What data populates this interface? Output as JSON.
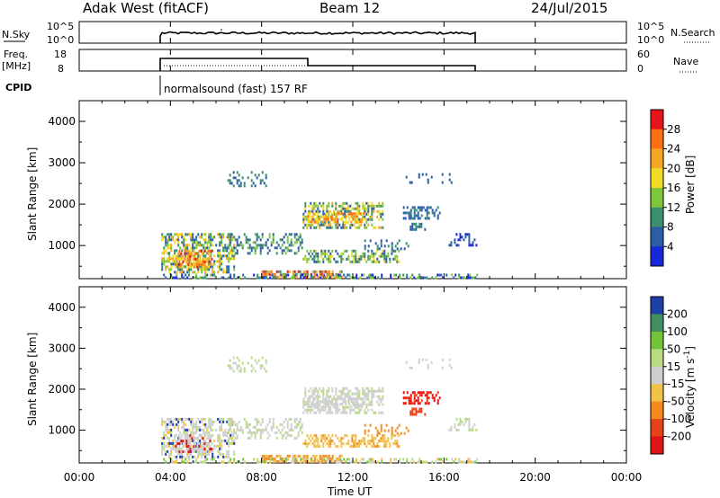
{
  "header": {
    "station": "Adak West (fitACF)",
    "beam": "Beam 12",
    "date": "24/Jul/2015"
  },
  "panels": {
    "nsky": {
      "label": "N.Sky",
      "left_ticks": [
        "10^5",
        "10^0"
      ],
      "right_ticks": [
        "10^5",
        "10^0"
      ],
      "right_label": "N.Search"
    },
    "freq": {
      "label_top": "Freq.",
      "label_bottom": "[MHz]",
      "left_ticks": [
        "18",
        "8"
      ],
      "right_ticks": [
        "60",
        "0"
      ],
      "right_label": "Nave"
    },
    "cpid": {
      "label": "CPID",
      "mode": "normalsound (fast) 157 RF"
    }
  },
  "time_axis": {
    "label": "Time UT",
    "ticks": [
      "00:00",
      "04:00",
      "08:00",
      "12:00",
      "16:00",
      "20:00",
      "00:00"
    ],
    "hours": [
      0,
      4,
      8,
      12,
      16,
      20,
      24
    ]
  },
  "chart_data": [
    {
      "type": "heatmap",
      "name": "power",
      "ylabel": "Slant Range [km]",
      "xlabel": "",
      "xlim_hours": [
        0,
        24
      ],
      "ylim": [
        200,
        4500
      ],
      "yticks": [
        1000,
        2000,
        3000,
        4000
      ],
      "data_span_hours": [
        3.6,
        17.5
      ],
      "colorbar": {
        "label": "Power [dB]",
        "ticks": [
          "28",
          "24",
          "20",
          "16",
          "12",
          "8",
          "4"
        ],
        "colors": [
          "#e8141c",
          "#ff6e10",
          "#f5a623",
          "#f2dc23",
          "#7fc63b",
          "#3a8f6e",
          "#2c5ea8",
          "#1826dc"
        ]
      }
    },
    {
      "type": "heatmap",
      "name": "velocity",
      "ylabel": "Slant Range [km]",
      "xlabel": "Time UT",
      "xlim_hours": [
        0,
        24
      ],
      "ylim": [
        200,
        4500
      ],
      "yticks": [
        1000,
        2000,
        3000,
        4000
      ],
      "data_span_hours": [
        3.6,
        17.5
      ],
      "colorbar": {
        "label": "Velocity [m s^-1]",
        "ticks": [
          "200",
          "100",
          "50",
          "15",
          "-15",
          "-50",
          "-100",
          "-200"
        ],
        "colors": [
          "#1f3ea8",
          "#3f8f60",
          "#74c43a",
          "#b8dc80",
          "#cfcfcf",
          "#f2c14a",
          "#f58a1e",
          "#e8421a",
          "#e01414"
        ]
      }
    }
  ]
}
